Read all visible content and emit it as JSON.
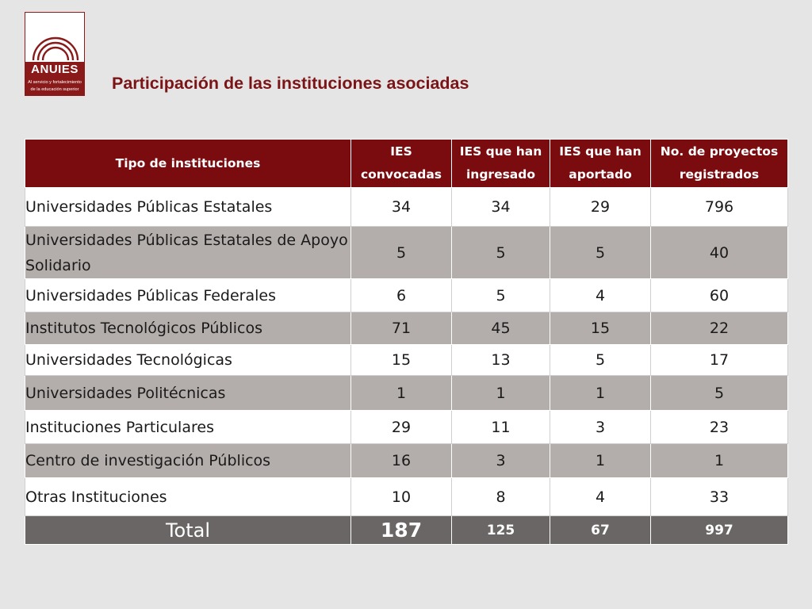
{
  "logo": {
    "name": "ANUIES",
    "tagline_1": "Al servicio y fortalecimiento",
    "tagline_2": "de la educación superior"
  },
  "title": "Participación de las instituciones asociadas",
  "table": {
    "headers": [
      "Tipo de instituciones",
      "IES convocadas",
      "IES que han ingresado",
      "IES que han aportado",
      "No. de proyectos registrados"
    ],
    "rows": [
      {
        "tipo": "Universidades Públicas Estatales",
        "convocadas": "34",
        "ingresado": "34",
        "aportado": "29",
        "proyectos": "796"
      },
      {
        "tipo": "Universidades Públicas Estatales de Apoyo Solidario",
        "convocadas": "5",
        "ingresado": "5",
        "aportado": "5",
        "proyectos": "40"
      },
      {
        "tipo": "Universidades Públicas Federales",
        "convocadas": "6",
        "ingresado": "5",
        "aportado": "4",
        "proyectos": "60"
      },
      {
        "tipo": "Institutos Tecnológicos Públicos",
        "convocadas": "71",
        "ingresado": "45",
        "aportado": "15",
        "proyectos": "22"
      },
      {
        "tipo": "Universidades Tecnológicas",
        "convocadas": "15",
        "ingresado": "13",
        "aportado": "5",
        "proyectos": "17"
      },
      {
        "tipo": "Universidades Politécnicas",
        "convocadas": "1",
        "ingresado": "1",
        "aportado": "1",
        "proyectos": "5"
      },
      {
        "tipo": "Instituciones Particulares",
        "convocadas": "29",
        "ingresado": "11",
        "aportado": "3",
        "proyectos": "23"
      },
      {
        "tipo": "Centro de investigación Públicos",
        "convocadas": "16",
        "ingresado": "3",
        "aportado": "1",
        "proyectos": "1"
      },
      {
        "tipo": "Otras Instituciones",
        "convocadas": "10",
        "ingresado": "8",
        "aportado": "4",
        "proyectos": "33"
      }
    ],
    "total": {
      "label": "Total",
      "convocadas": "187",
      "ingresado": "125",
      "aportado": "67",
      "proyectos": "997"
    }
  },
  "colors": {
    "header_bg": "#7a0c10",
    "title": "#7a1416",
    "row_dark": "#b3aeab",
    "total_bg": "#6b6666",
    "background": "#e6e5e5"
  }
}
